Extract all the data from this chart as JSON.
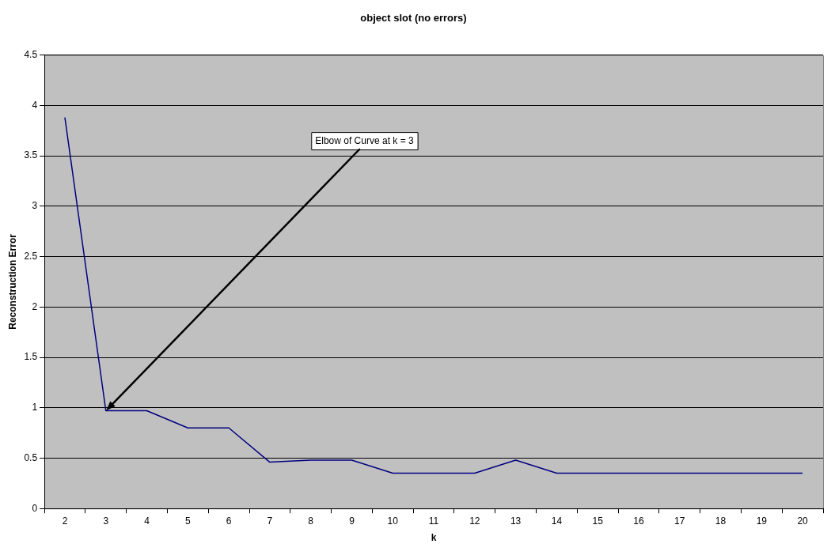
{
  "chart_data": {
    "type": "line",
    "title": "object slot (no errors)",
    "xlabel": "k",
    "ylabel": "Reconstruction Error",
    "categories": [
      "2",
      "3",
      "4",
      "5",
      "6",
      "7",
      "8",
      "9",
      "10",
      "11",
      "12",
      "13",
      "14",
      "15",
      "16",
      "17",
      "18",
      "19",
      "20"
    ],
    "series": [
      {
        "color": "#000080",
        "values": [
          3.88,
          0.97,
          0.97,
          0.8,
          0.8,
          0.46,
          0.48,
          0.48,
          0.35,
          0.35,
          0.35,
          0.48,
          0.35,
          0.35,
          0.35,
          0.35,
          0.35,
          0.35,
          0.35
        ]
      }
    ],
    "ylim": [
      0,
      4.5
    ],
    "yticks": [
      0,
      0.5,
      1,
      1.5,
      2,
      2.5,
      3,
      3.5,
      4,
      4.5
    ],
    "grid": "y",
    "legend": false,
    "marker": "none",
    "line_style": "solid",
    "annotations": [
      {
        "text": "Elbow of Curve at k = 3",
        "x": "3",
        "y": 0.97
      }
    ]
  }
}
